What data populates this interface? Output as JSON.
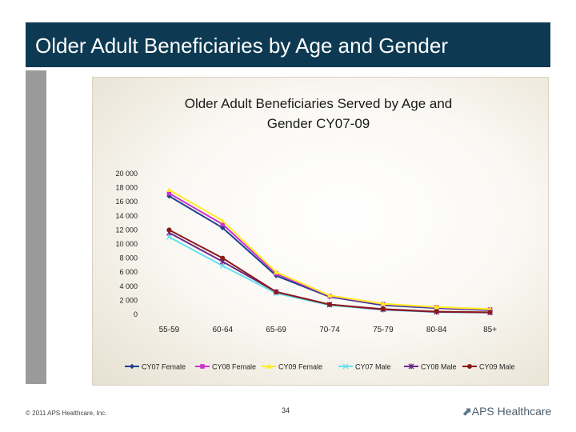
{
  "slide": {
    "title": "Older Adult Beneficiaries by Age and Gender",
    "footer_left": "© 2011 APS Healthcare, Inc.",
    "page_number": "34",
    "logo_text": "APS Healthcare"
  },
  "colors": {
    "title_bar": "#0d3a52",
    "accent_bar": "#9a9a9a"
  },
  "chart_data": {
    "type": "line",
    "title_line1": "Older Adult Beneficiaries Served by Age and",
    "title_line2": "Gender CY07-09",
    "categories": [
      "55-59",
      "60-64",
      "65-69",
      "70-74",
      "75-79",
      "80-84",
      "85+"
    ],
    "ylim": [
      0,
      20000
    ],
    "yticks": [
      0,
      2000,
      4000,
      6000,
      8000,
      10000,
      12000,
      14000,
      16000,
      18000,
      20000
    ],
    "ytick_labels": [
      "0",
      "2 000",
      "4 000",
      "6 000",
      "8 000",
      "10 000",
      "12 000",
      "14 000",
      "16 000",
      "18 000",
      "20 000"
    ],
    "legend_position": "bottom",
    "series": [
      {
        "name": "CY07 Female",
        "color": "#1f3f8c",
        "marker": "diamond",
        "values": [
          16800,
          12300,
          5500,
          2500,
          1300,
          900,
          600
        ]
      },
      {
        "name": "CY08 Female",
        "color": "#cc33cc",
        "marker": "square",
        "values": [
          17200,
          12800,
          5800,
          2600,
          1450,
          1000,
          700
        ]
      },
      {
        "name": "CY09 Female",
        "color": "#ffee22",
        "marker": "triangle",
        "values": [
          17700,
          13300,
          6000,
          2700,
          1500,
          1050,
          750
        ]
      },
      {
        "name": "CY07 Male",
        "color": "#66e0ee",
        "marker": "x",
        "values": [
          11000,
          6900,
          3000,
          1300,
          650,
          330,
          250
        ]
      },
      {
        "name": "CY08 Male",
        "color": "#6a2a8a",
        "marker": "star",
        "values": [
          11600,
          7500,
          3200,
          1400,
          700,
          350,
          270
        ]
      },
      {
        "name": "CY09 Male",
        "color": "#8b1a1a",
        "marker": "circle",
        "values": [
          12000,
          8000,
          3200,
          1400,
          750,
          400,
          300
        ]
      }
    ]
  }
}
